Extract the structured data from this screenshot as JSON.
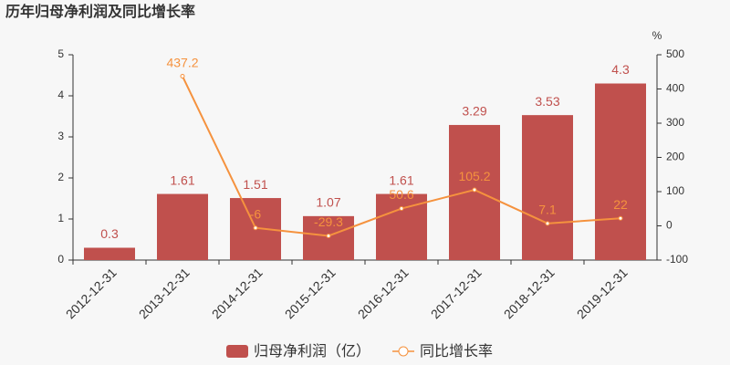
{
  "chart_data": {
    "type": "bar",
    "title": "历年归母净利润及同比增长率",
    "categories": [
      "2012-12-31",
      "2013-12-31",
      "2014-12-31",
      "2015-12-31",
      "2016-12-31",
      "2017-12-31",
      "2018-12-31",
      "2019-12-31"
    ],
    "series": [
      {
        "name": "归母净利润（亿）",
        "type": "bar",
        "color": "#c0504d",
        "values": [
          0.3,
          1.61,
          1.51,
          1.07,
          1.61,
          3.29,
          3.53,
          4.3
        ]
      },
      {
        "name": "同比增长率",
        "type": "line",
        "axis": "y2",
        "color": "#f5923e",
        "values": [
          null,
          437.2,
          -6,
          -29.3,
          50.6,
          105.2,
          7.1,
          22
        ]
      }
    ],
    "ylim": [
      0,
      5
    ],
    "yticks": [
      0,
      1,
      2,
      3,
      4,
      5
    ],
    "y2label": "%",
    "y2lim": [
      -100,
      500
    ],
    "y2ticks": [
      -100,
      0,
      100,
      200,
      300,
      400,
      500
    ],
    "grid": false
  }
}
